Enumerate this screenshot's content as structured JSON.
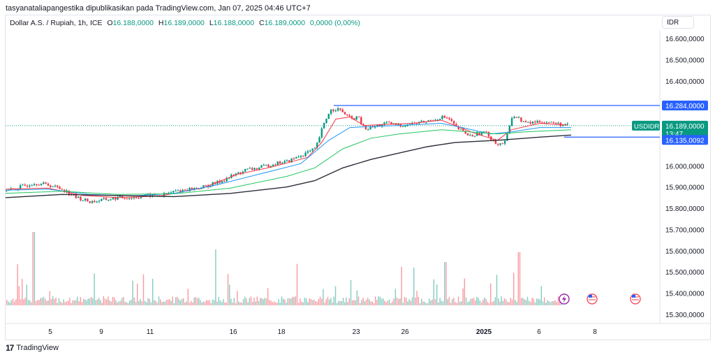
{
  "header": {
    "published": "tasyanataliapangestika dipublikasikan pada TradingView.com, Jan 07, 2025 04:46 UTC+7"
  },
  "legend": {
    "symbol": "Dollar A.S. / Rupiah, 1h, ICE",
    "o_label": "O",
    "o_value": "16.188,0000",
    "h_label": "H",
    "h_value": "16.189,0000",
    "l_label": "L",
    "l_value": "16.188,0000",
    "c_label": "C",
    "c_value": "16.189,0000",
    "change": "0,0000 (0,00%)"
  },
  "currency_button": "IDR",
  "brand": {
    "name": "TradingView"
  },
  "colors": {
    "up": "#089981",
    "down": "#f23645",
    "ema_fast": "#f23645",
    "ema_mid": "#2196f3",
    "ema_slow": "#22c55e",
    "ema_long": "#2a2e39",
    "hline": "#2962ff"
  },
  "chart_data": {
    "type": "candlestick",
    "ylim": [
      15200,
      16650
    ],
    "y_ticks": [
      "16.600,0000",
      "16.500,0000",
      "16.400,0000",
      "16.284,0000",
      "16.189,0000",
      "16.000,0000",
      "15.900,0000",
      "15.800,0000",
      "15.700,0000",
      "15.600,0000",
      "15.500,0000",
      "15.400,0000",
      "15.300,0000"
    ],
    "x_ticks": [
      "5",
      "9",
      "11",
      "16",
      "18",
      "23",
      "26",
      "2025",
      "6",
      "8"
    ],
    "symbol_tag": "USDIDR",
    "last_price": "16.189,0000",
    "countdown": "13:47",
    "level_high": {
      "value": 16284,
      "label": "16.284,0000"
    },
    "level_low": {
      "value": 16135.0092,
      "label": "16.135,0092"
    },
    "series": [
      {
        "name": "",
        "kind": "price_close",
        "points": [
          [
            0,
            15880
          ],
          [
            20,
            15900
          ],
          [
            40,
            15920
          ],
          [
            60,
            15910
          ],
          [
            80,
            15890
          ],
          [
            100,
            15850
          ],
          [
            120,
            15830
          ],
          [
            140,
            15840
          ],
          [
            160,
            15850
          ],
          [
            180,
            15850
          ],
          [
            200,
            15860
          ],
          [
            220,
            15860
          ],
          [
            240,
            15880
          ],
          [
            260,
            15890
          ],
          [
            280,
            15900
          ],
          [
            300,
            15920
          ],
          [
            320,
            15950
          ],
          [
            340,
            15980
          ],
          [
            360,
            15990
          ],
          [
            380,
            16010
          ],
          [
            400,
            16020
          ],
          [
            420,
            16050
          ],
          [
            440,
            16080
          ],
          [
            450,
            16180
          ],
          [
            460,
            16260
          ],
          [
            470,
            16270
          ],
          [
            480,
            16250
          ],
          [
            490,
            16220
          ],
          [
            500,
            16230
          ],
          [
            510,
            16170
          ],
          [
            520,
            16180
          ],
          [
            540,
            16200
          ],
          [
            560,
            16190
          ],
          [
            580,
            16200
          ],
          [
            600,
            16210
          ],
          [
            620,
            16230
          ],
          [
            630,
            16220
          ],
          [
            640,
            16180
          ],
          [
            660,
            16140
          ],
          [
            680,
            16160
          ],
          [
            700,
            16100
          ],
          [
            710,
            16110
          ],
          [
            720,
            16240
          ],
          [
            740,
            16200
          ],
          [
            760,
            16210
          ],
          [
            780,
            16200
          ],
          [
            800,
            16189
          ]
        ]
      },
      {
        "name": "",
        "kind": "ema_fast",
        "points": [
          [
            0,
            15890
          ],
          [
            60,
            15895
          ],
          [
            110,
            15860
          ],
          [
            160,
            15850
          ],
          [
            220,
            15858
          ],
          [
            280,
            15895
          ],
          [
            330,
            15960
          ],
          [
            380,
            15995
          ],
          [
            430,
            16040
          ],
          [
            450,
            16110
          ],
          [
            470,
            16220
          ],
          [
            490,
            16230
          ],
          [
            510,
            16190
          ],
          [
            540,
            16195
          ],
          [
            580,
            16200
          ],
          [
            620,
            16215
          ],
          [
            640,
            16190
          ],
          [
            670,
            16150
          ],
          [
            700,
            16120
          ],
          [
            720,
            16170
          ],
          [
            760,
            16200
          ],
          [
            800,
            16192
          ]
        ]
      },
      {
        "name": "",
        "kind": "ema_mid",
        "points": [
          [
            0,
            15885
          ],
          [
            60,
            15890
          ],
          [
            120,
            15865
          ],
          [
            180,
            15858
          ],
          [
            240,
            15870
          ],
          [
            300,
            15910
          ],
          [
            360,
            15960
          ],
          [
            420,
            16010
          ],
          [
            460,
            16120
          ],
          [
            490,
            16180
          ],
          [
            520,
            16185
          ],
          [
            560,
            16190
          ],
          [
            620,
            16200
          ],
          [
            650,
            16180
          ],
          [
            690,
            16150
          ],
          [
            720,
            16160
          ],
          [
            760,
            16180
          ],
          [
            805,
            16180
          ]
        ]
      },
      {
        "name": "",
        "kind": "ema_slow",
        "points": [
          [
            0,
            15870
          ],
          [
            80,
            15880
          ],
          [
            160,
            15865
          ],
          [
            240,
            15868
          ],
          [
            320,
            15895
          ],
          [
            400,
            15950
          ],
          [
            440,
            15990
          ],
          [
            480,
            16080
          ],
          [
            520,
            16130
          ],
          [
            560,
            16150
          ],
          [
            620,
            16170
          ],
          [
            660,
            16160
          ],
          [
            700,
            16150
          ],
          [
            740,
            16160
          ],
          [
            805,
            16170
          ]
        ]
      },
      {
        "name": "",
        "kind": "ema_long",
        "points": [
          [
            0,
            15850
          ],
          [
            80,
            15865
          ],
          [
            160,
            15860
          ],
          [
            240,
            15855
          ],
          [
            320,
            15870
          ],
          [
            400,
            15900
          ],
          [
            440,
            15930
          ],
          [
            480,
            15990
          ],
          [
            520,
            16030
          ],
          [
            560,
            16060
          ],
          [
            600,
            16090
          ],
          [
            640,
            16110
          ],
          [
            700,
            16120
          ],
          [
            760,
            16135
          ],
          [
            805,
            16145
          ]
        ]
      }
    ],
    "volume": {
      "max": 1.0,
      "note": "histogram at bottom"
    },
    "grid": false,
    "legend_position": "none"
  }
}
